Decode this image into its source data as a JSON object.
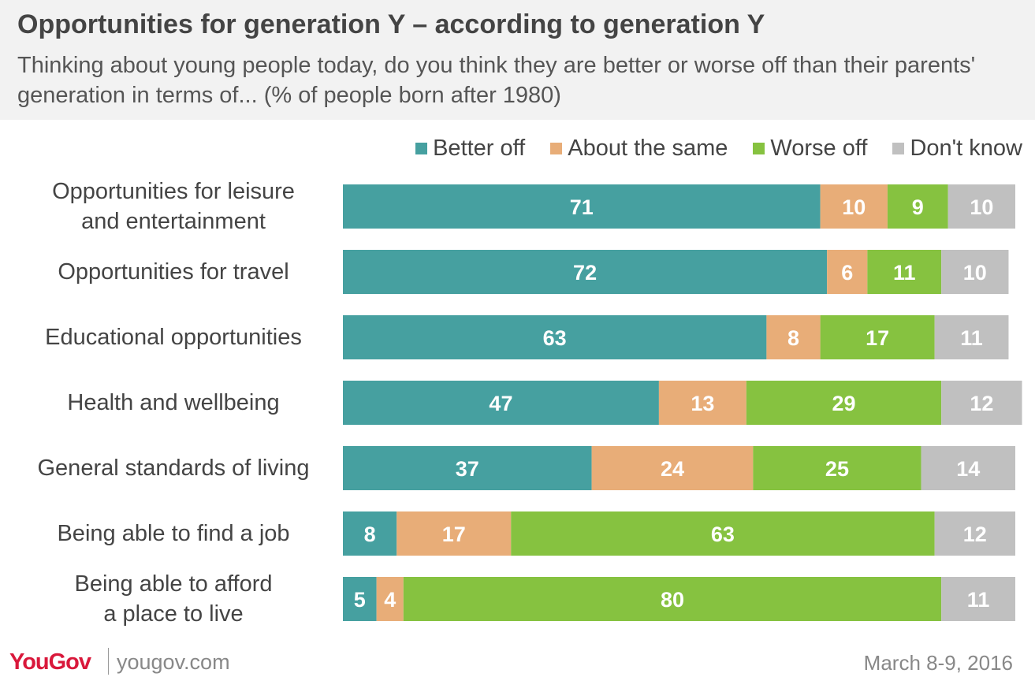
{
  "header": {
    "title": "Opportunities for generation Y – according to generation Y",
    "subtitle": "Thinking about young people today, do you think they are better or worse off than their parents' generation in terms of... (% of people born after 1980)"
  },
  "legend": [
    {
      "label": "Better off",
      "color": "#46a0a0"
    },
    {
      "label": "About the same",
      "color": "#e8ad78"
    },
    {
      "label": "Worse off",
      "color": "#86c240"
    },
    {
      "label": "Don't know",
      "color": "#c0c0c0"
    }
  ],
  "chart_data": {
    "type": "bar",
    "orientation": "horizontal",
    "stacked": true,
    "categories": [
      "Opportunities for leisure and entertainment",
      "Opportunities for travel",
      "Educational opportunities",
      "Health and wellbeing",
      "General standards of living",
      "Being able to find a job",
      "Being able to afford a place to live"
    ],
    "series": [
      {
        "name": "Better off",
        "color": "#46a0a0",
        "values": [
          71,
          72,
          63,
          47,
          37,
          8,
          5
        ]
      },
      {
        "name": "About the same",
        "color": "#e8ad78",
        "values": [
          10,
          6,
          8,
          13,
          24,
          17,
          4
        ]
      },
      {
        "name": "Worse off",
        "color": "#86c240",
        "values": [
          9,
          11,
          17,
          29,
          25,
          63,
          80
        ]
      },
      {
        "name": "Don't know",
        "color": "#c0c0c0",
        "values": [
          10,
          10,
          11,
          12,
          14,
          12,
          11
        ]
      }
    ],
    "legend_position": "top-right",
    "data_labels": true
  },
  "row_labels": [
    "Opportunities for leisure\nand entertainment",
    "Opportunities for travel",
    "Educational opportunities",
    "Health and wellbeing",
    "General standards of living",
    "Being able to find a job",
    "Being able to afford\na place to live"
  ],
  "footer": {
    "logo": "YouGov",
    "url": "yougov.com",
    "date": "March 8-9, 2016"
  }
}
